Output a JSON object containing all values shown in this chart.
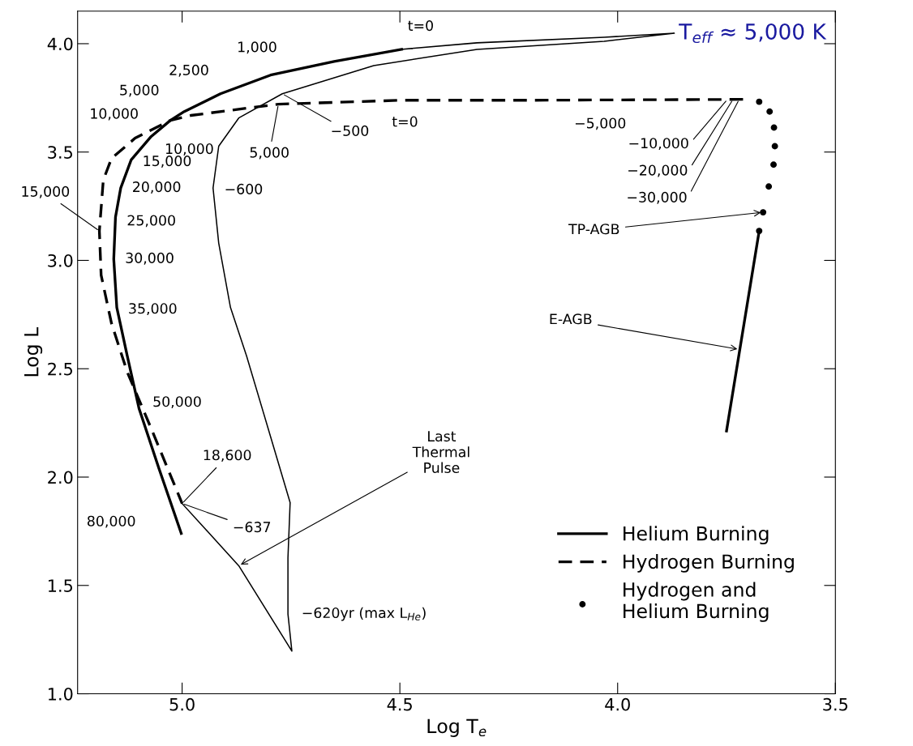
{
  "chart_data": {
    "type": "line",
    "xlabel": "Log T$_{e}$",
    "ylabel": "Log L",
    "xlim": [
      5.24,
      3.5
    ],
    "ylim": [
      1.0,
      4.15
    ],
    "xticks": [
      {
        "value": 5.0,
        "label": "5.0"
      },
      {
        "value": 4.5,
        "label": "4.5"
      },
      {
        "value": 4.0,
        "label": "4.0"
      },
      {
        "value": 3.5,
        "label": "3.5"
      }
    ],
    "yticks": [
      {
        "value": 1.0,
        "label": "1.0"
      },
      {
        "value": 1.5,
        "label": "1.5"
      },
      {
        "value": 2.0,
        "label": "2.0"
      },
      {
        "value": 2.5,
        "label": "2.5"
      },
      {
        "value": 3.0,
        "label": "3.0"
      },
      {
        "value": 3.5,
        "label": "3.5"
      },
      {
        "value": 4.0,
        "label": "4.0"
      }
    ],
    "grid": false,
    "legend": "bottom right",
    "series": [
      {
        "name": "Helium Burning",
        "color": "#000000",
        "line_style": "solid",
        "x": [
          4.496,
          4.651,
          4.797,
          4.912,
          4.995,
          5.027,
          5.071,
          5.117,
          5.141,
          5.153,
          5.157,
          5.15,
          5.126,
          5.099,
          5.053,
          5.002,
          null,
          3.75,
          3.675
        ],
        "values": [
          3.974,
          3.918,
          3.855,
          3.769,
          3.687,
          3.646,
          3.572,
          3.464,
          3.334,
          3.2,
          3.006,
          2.783,
          2.559,
          2.317,
          2.038,
          1.74,
          null,
          2.213,
          3.136
        ]
      },
      {
        "name": "Hydrogen Burning",
        "color": "#000000",
        "line_style": "dashed",
        "x": [
          3.712,
          4.214,
          4.496,
          4.779,
          4.98,
          5.027,
          5.108,
          5.162,
          5.181,
          5.19,
          5.186,
          5.162,
          5.126,
          5.071,
          5.0
        ],
        "values": [
          3.743,
          3.739,
          3.739,
          3.721,
          3.669,
          3.646,
          3.564,
          3.471,
          3.371,
          3.136,
          2.932,
          2.708,
          2.485,
          2.224,
          1.878
        ]
      },
      {
        "name": "Hydrogen and\nHelium Burning",
        "color": "#000000",
        "type": "scatter",
        "marker": "circle",
        "x": [
          3.675,
          3.651,
          3.641,
          3.639,
          3.642,
          3.653,
          3.666,
          3.675
        ],
        "values": [
          3.732,
          3.687,
          3.613,
          3.527,
          3.442,
          3.341,
          3.222,
          3.136
        ]
      },
      {
        "color": "#000000",
        "line_style": "solid",
        "x": [
          5.0,
          4.87,
          4.748,
          4.757,
          4.757,
          4.752,
          4.797,
          4.852,
          4.889,
          4.916,
          4.929,
          4.916,
          4.87,
          4.77,
          4.56,
          4.323,
          4.031,
          3.87,
          4.031,
          4.323,
          4.496
        ],
        "values": [
          1.878,
          1.591,
          1.197,
          1.368,
          1.628,
          1.882,
          2.187,
          2.559,
          2.783,
          3.08,
          3.334,
          3.527,
          3.657,
          3.769,
          3.899,
          3.974,
          4.011,
          4.048,
          4.03,
          4.004,
          3.974
        ]
      }
    ],
    "annotations": [
      {
        "text": "t=0",
        "x": 4.496,
        "y": 3.974
      },
      {
        "text": "1,000",
        "x": 4.797,
        "y": 3.855
      },
      {
        "text": "2,500",
        "x": 4.912,
        "y": 3.769
      },
      {
        "text": "5,000",
        "x": 4.995,
        "y": 3.687
      },
      {
        "text": "10,000",
        "x": 5.027,
        "y": 3.646
      },
      {
        "text": "10,000",
        "x": 5.066,
        "y": 3.572
      },
      {
        "text": "15,000",
        "x": 5.117,
        "y": 3.464
      },
      {
        "text": "20,000",
        "x": 5.141,
        "y": 3.334
      },
      {
        "text": "25,000",
        "x": 5.153,
        "y": 3.2
      },
      {
        "text": "30,000",
        "x": 5.157,
        "y": 3.006
      },
      {
        "text": "35,000",
        "x": 5.15,
        "y": 2.783
      },
      {
        "text": "15,000",
        "x": 5.19,
        "y": 3.136
      },
      {
        "text": "−500",
        "x": 4.77,
        "y": 3.769
      },
      {
        "text": "5,000",
        "x": 4.779,
        "y": 3.721
      },
      {
        "text": "t=0",
        "x": 4.496,
        "y": 3.739
      },
      {
        "text": "−600",
        "x": 4.929,
        "y": 3.334
      },
      {
        "text": "−5,000",
        "x": 4.009,
        "y": 3.742
      },
      {
        "text": "−10,000",
        "x": 3.748,
        "y": 3.743
      },
      {
        "text": "−20,000",
        "x": 3.735,
        "y": 3.743
      },
      {
        "text": "−30,000",
        "x": 3.721,
        "y": 3.743
      },
      {
        "text": "TP-AGB",
        "x": 3.666,
        "y": 3.222
      },
      {
        "text": "E-AGB",
        "x": 3.72,
        "y": 2.589
      },
      {
        "text": "50,000",
        "x": 5.099,
        "y": 2.317
      },
      {
        "text": "18,600",
        "x": 5.0,
        "y": 1.878
      },
      {
        "text": "−637",
        "x": 5.0,
        "y": 1.878
      },
      {
        "text": "80,000",
        "x": 5.018,
        "y": 1.833
      },
      {
        "text": "Last\nThermal\nPulse",
        "x": 4.87,
        "y": 1.591
      },
      {
        "text": "−620yr (max L$_{He}$)",
        "x": 4.757,
        "y": 1.368
      },
      "T$_{eff}$ ≈ 5,000 K"
    ]
  }
}
